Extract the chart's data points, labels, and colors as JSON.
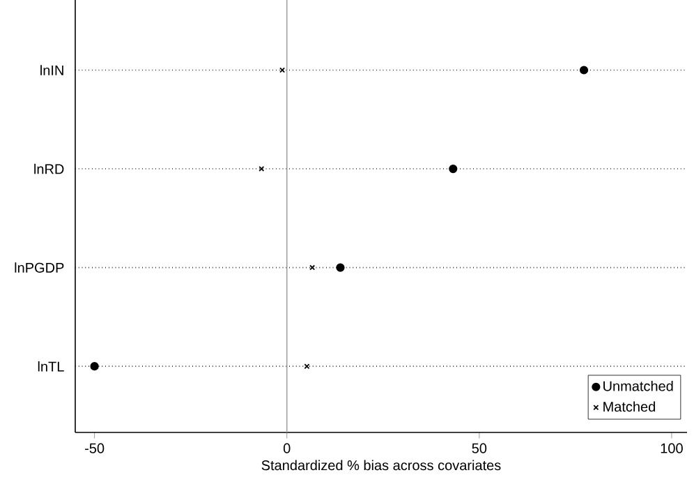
{
  "chart_data": {
    "type": "scatter",
    "orientation": "horizontal",
    "xlabel": "Standardized % bias across covariates",
    "categories": [
      "lnIN",
      "lnRD",
      "lnPGDP",
      "lnTL"
    ],
    "series": [
      {
        "name": "Unmatched",
        "color": "#000000",
        "marker": "circle",
        "values": [
          77.2,
          43.2,
          13.9,
          -50
        ]
      },
      {
        "name": "Matched",
        "color": "#000000",
        "marker": "cross",
        "values": [
          -1.2,
          -6.6,
          6.6,
          5.2
        ]
      }
    ],
    "xlim": [
      -55,
      104
    ],
    "xticks": [
      -50,
      0,
      50,
      100
    ],
    "grid": "y",
    "line_style": "dotted",
    "ref_lines": [
      {
        "axis": "x",
        "value": 0,
        "color": "#a0a0a0"
      }
    ],
    "legend": "bottom right"
  }
}
